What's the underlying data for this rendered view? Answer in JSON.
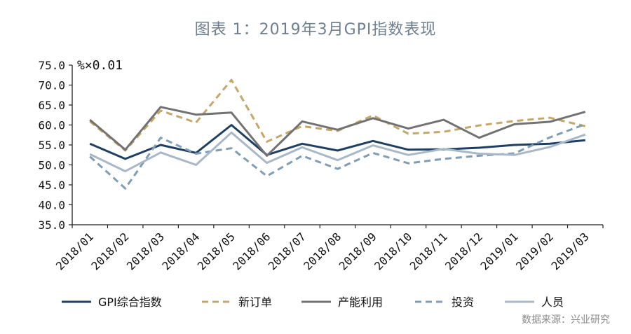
{
  "title": "图表 1：2019年3月GPI指数表现",
  "source": "数据来源：兴业研究",
  "chart_data": {
    "type": "line",
    "unit_label": "%×0.01",
    "categories": [
      "2018/01",
      "2018/02",
      "2018/03",
      "2018/04",
      "2018/05",
      "2018/06",
      "2018/07",
      "2018/08",
      "2018/09",
      "2018/10",
      "2018/11",
      "2018/12",
      "2019/01",
      "2019/02",
      "2019/03"
    ],
    "ylim": [
      35,
      75
    ],
    "yticks": [
      "75.0",
      "70.0",
      "65.0",
      "60.0",
      "55.0",
      "50.0",
      "45.0",
      "40.0",
      "35.0"
    ],
    "ytick_values": [
      75,
      70,
      65,
      60,
      55,
      50,
      45,
      40,
      35
    ],
    "legend_position": "bottom",
    "series": [
      {
        "name": "GPI综合指数",
        "color": "#1f3f63",
        "dash": "solid",
        "values": [
          55.3,
          51.5,
          55.0,
          53.0,
          60.0,
          52.5,
          55.3,
          53.6,
          56.0,
          53.8,
          53.9,
          54.3,
          55.0,
          55.3,
          56.2
        ]
      },
      {
        "name": "新订单",
        "color": "#c4a86a",
        "dash": "dashed",
        "values": [
          60.9,
          53.6,
          63.6,
          60.6,
          71.3,
          55.8,
          59.7,
          58.5,
          62.4,
          57.8,
          58.3,
          59.9,
          61.0,
          61.8,
          59.7
        ]
      },
      {
        "name": "产能利用",
        "color": "#727272",
        "dash": "solid",
        "values": [
          61.3,
          53.8,
          64.5,
          62.6,
          63.1,
          52.3,
          60.9,
          58.8,
          61.7,
          59.1,
          61.3,
          56.8,
          60.2,
          60.8,
          63.3
        ]
      },
      {
        "name": "投资",
        "color": "#7f9db5",
        "dash": "dashed",
        "values": [
          52.1,
          44.1,
          56.8,
          52.8,
          54.2,
          47.2,
          52.3,
          49.0,
          53.0,
          50.4,
          51.5,
          52.3,
          52.9,
          56.9,
          60.2
        ]
      },
      {
        "name": "人员",
        "color": "#a9b8c7",
        "dash": "solid",
        "values": [
          52.7,
          48.4,
          53.1,
          50.0,
          58.1,
          50.5,
          54.4,
          51.2,
          54.9,
          52.5,
          54.0,
          52.8,
          52.5,
          54.5,
          57.6
        ]
      }
    ]
  }
}
